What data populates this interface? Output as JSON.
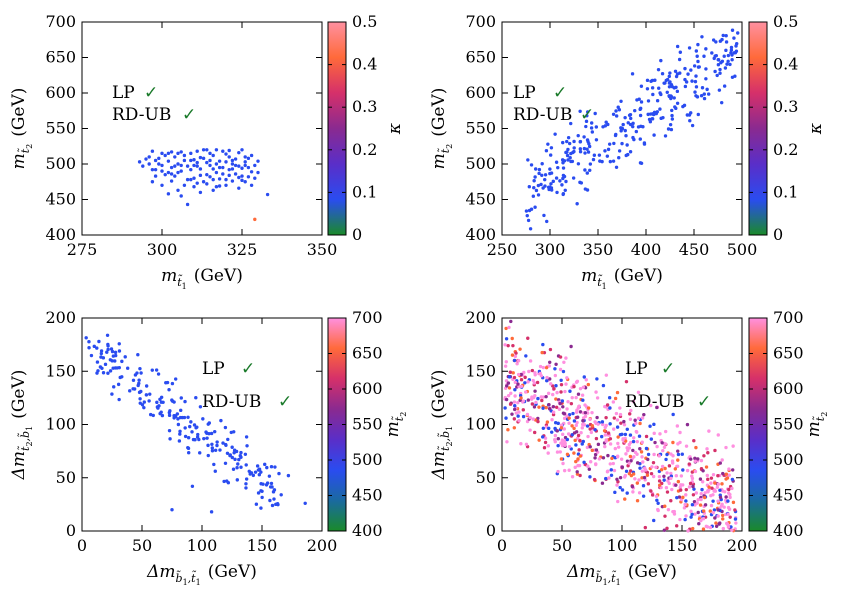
{
  "figure": {
    "panels": [
      {
        "id": "top-left",
        "annotations": {
          "lp": "LP",
          "rdub": "RD-UB",
          "check": "✓"
        },
        "xlabel": {
          "base": "m",
          "sub": "t̃",
          "subsub": "1",
          "unit": "(GeV)"
        },
        "ylabel": {
          "base": "m",
          "sub": "t̃",
          "subsub": "2",
          "unit": "(GeV)"
        },
        "colorbar_label": "κ"
      },
      {
        "id": "top-right",
        "annotations": {
          "lp": "LP",
          "rdub": "RD-UB",
          "check": "✓"
        },
        "xlabel": {
          "base": "m",
          "sub": "t̃",
          "subsub": "1",
          "unit": "(GeV)"
        },
        "ylabel": {
          "base": "m",
          "sub": "t̃",
          "subsub": "2",
          "unit": "(GeV)"
        },
        "colorbar_label": "κ"
      },
      {
        "id": "bottom-left",
        "annotations": {
          "lp": "LP",
          "rdub": "RD-UB",
          "check": "✓"
        },
        "xlabel": {
          "base": "Δm",
          "sub": "b̃",
          "subsub": "1",
          "sub2": ",t̃",
          "subsub2": "1",
          "unit": "(GeV)"
        },
        "ylabel": {
          "base": "Δm",
          "sub": "t̃",
          "subsub": "2",
          "sub2": ",b̃",
          "subsub2": "1",
          "unit": "(GeV)"
        },
        "colorbar_label": {
          "base": "m",
          "sub": "t̃",
          "subsub": "2"
        }
      },
      {
        "id": "bottom-right",
        "annotations": {
          "lp": "LP",
          "rdub": "RD-UB",
          "check": "✓"
        },
        "xlabel": {
          "base": "Δm",
          "sub": "b̃",
          "subsub": "1",
          "sub2": ",t̃",
          "subsub2": "1",
          "unit": "(GeV)"
        },
        "ylabel": {
          "base": "Δm",
          "sub": "t̃",
          "subsub": "2",
          "sub2": ",b̃",
          "subsub2": "1",
          "unit": "(GeV)"
        },
        "colorbar_label": {
          "base": "m",
          "sub": "t̃",
          "subsub": "2"
        }
      }
    ]
  },
  "chart_data": [
    {
      "type": "scatter",
      "panel": "top-left",
      "xlabel": "m_t̃1 (GeV)",
      "ylabel": "m_t̃2 (GeV)",
      "xlim": [
        275,
        350
      ],
      "ylim": [
        400,
        700
      ],
      "xticks": [
        275,
        300,
        325,
        350
      ],
      "yticks": [
        400,
        450,
        500,
        550,
        600,
        650,
        700
      ],
      "colorbar": {
        "label": "κ",
        "range": [
          0,
          0.5
        ],
        "ticks": [
          0,
          0.1,
          0.2,
          0.3,
          0.4,
          0.5
        ],
        "colors": [
          "#1a8a2a",
          "#2a4cf0",
          "#5a2ec8",
          "#8a2a90",
          "#d5306a",
          "#ff6a3a",
          "#ff90a0"
        ]
      },
      "point_color": "#2a4cf0",
      "points": [
        [
          293,
          503
        ],
        [
          296,
          500
        ],
        [
          298,
          492
        ],
        [
          300,
          498
        ],
        [
          302,
          504
        ],
        [
          303,
          495
        ],
        [
          304,
          510
        ],
        [
          305,
          500
        ],
        [
          306,
          490
        ],
        [
          307,
          505
        ],
        [
          308,
          497
        ],
        [
          309,
          515
        ],
        [
          310,
          480
        ],
        [
          311,
          502
        ],
        [
          312,
          493
        ],
        [
          313,
          508
        ],
        [
          314,
          485
        ],
        [
          315,
          498
        ],
        [
          316,
          512
        ],
        [
          317,
          488
        ],
        [
          318,
          504
        ],
        [
          319,
          495
        ],
        [
          320,
          478
        ],
        [
          321,
          510
        ],
        [
          322,
          500
        ],
        [
          323,
          486
        ],
        [
          324,
          516
        ],
        [
          325,
          494
        ],
        [
          326,
          503
        ],
        [
          327,
          482
        ],
        [
          328,
          512
        ],
        [
          329,
          498
        ],
        [
          330,
          488
        ],
        [
          297,
          518
        ],
        [
          299,
          508
        ],
        [
          301,
          485
        ],
        [
          303,
          476
        ],
        [
          305,
          515
        ],
        [
          307,
          470
        ],
        [
          309,
          492
        ],
        [
          311,
          518
        ],
        [
          313,
          475
        ],
        [
          315,
          505
        ],
        [
          317,
          520
        ],
        [
          319,
          486
        ],
        [
          321,
          492
        ],
        [
          323,
          507
        ],
        [
          325,
          520
        ],
        [
          327,
          495
        ],
        [
          300,
          515
        ],
        [
          302,
          488
        ],
        [
          304,
          497
        ],
        [
          306,
          517
        ],
        [
          308,
          478
        ],
        [
          310,
          506
        ],
        [
          312,
          484
        ],
        [
          314,
          520
        ],
        [
          316,
          493
        ],
        [
          318,
          479
        ],
        [
          320,
          514
        ],
        [
          322,
          493
        ],
        [
          324,
          481
        ],
        [
          326,
          510
        ],
        [
          328,
          489
        ],
        [
          298,
          483
        ],
        [
          296,
          510
        ],
        [
          294,
          497
        ],
        [
          300,
          470
        ],
        [
          302,
          458
        ],
        [
          306,
          455
        ],
        [
          308,
          443
        ],
        [
          312,
          460
        ],
        [
          316,
          463
        ],
        [
          320,
          470
        ],
        [
          324,
          466
        ],
        [
          328,
          470
        ],
        [
          333,
          457
        ],
        [
          297,
          492
        ],
        [
          299,
          500
        ],
        [
          301,
          512
        ],
        [
          303,
          517
        ],
        [
          305,
          488
        ],
        [
          307,
          512
        ],
        [
          309,
          505
        ],
        [
          311,
          497
        ],
        [
          313,
          520
        ],
        [
          315,
          482
        ],
        [
          317,
          500
        ],
        [
          319,
          518
        ],
        [
          321,
          484
        ],
        [
          323,
          498
        ],
        [
          325,
          483
        ],
        [
          327,
          508
        ],
        [
          329,
          480
        ],
        [
          310,
          498
        ],
        [
          314,
          502
        ],
        [
          318,
          495
        ],
        [
          322,
          505
        ],
        [
          326,
          498
        ],
        [
          304,
          483
        ],
        [
          306,
          498
        ],
        [
          312,
          509
        ],
        [
          316,
          478
        ],
        [
          320,
          503
        ],
        [
          324,
          497
        ],
        [
          298,
          505
        ],
        [
          300,
          490
        ],
        [
          302,
          515
        ],
        [
          310,
          468
        ],
        [
          314,
          472
        ],
        [
          318,
          469
        ],
        [
          322,
          476
        ],
        [
          326,
          475
        ],
        [
          330,
          504
        ],
        [
          295,
          507
        ],
        [
          297,
          475
        ],
        [
          303,
          486
        ],
        [
          309,
          478
        ],
        [
          315,
          515
        ],
        [
          321,
          519
        ],
        [
          325,
          477
        ],
        [
          305,
          463
        ],
        [
          311,
          473
        ],
        [
          317,
          468
        ]
      ],
      "highlighted": [
        {
          "x": 329,
          "y": 422,
          "color": "#ff6a3a"
        }
      ],
      "legend_text": [
        "LP ✓",
        "RD-UB ✓"
      ]
    },
    {
      "type": "scatter",
      "panel": "top-right",
      "xlabel": "m_t̃1 (GeV)",
      "ylabel": "m_t̃2 (GeV)",
      "xlim": [
        250,
        500
      ],
      "ylim": [
        400,
        700
      ],
      "xticks": [
        250,
        300,
        350,
        400,
        450,
        500
      ],
      "yticks": [
        400,
        450,
        500,
        550,
        600,
        650,
        700
      ],
      "colorbar": {
        "label": "κ",
        "range": [
          0,
          0.5
        ],
        "ticks": [
          0,
          0.1,
          0.2,
          0.3,
          0.4,
          0.5
        ],
        "colors": [
          "#1a8a2a",
          "#2a4cf0",
          "#5a2ec8",
          "#8a2a90",
          "#d5306a",
          "#ff6a3a",
          "#ff90a0"
        ]
      },
      "point_color": "#2a4cf0",
      "trend": {
        "x_start": 275,
        "x_end": 498,
        "y_start": 460,
        "y_end": 665,
        "spread": 60,
        "count": 340
      },
      "legend_text": [
        "LP ✓",
        "RD-UB ✓"
      ]
    },
    {
      "type": "scatter",
      "panel": "bottom-left",
      "xlabel": "Δm_b̃1,t̃1 (GeV)",
      "ylabel": "Δm_t̃2,b̃1 (GeV)",
      "xlim": [
        0,
        200
      ],
      "ylim": [
        0,
        200
      ],
      "xticks": [
        0,
        50,
        100,
        150,
        200
      ],
      "yticks": [
        0,
        50,
        100,
        150,
        200
      ],
      "colorbar": {
        "label": "m_t̃2",
        "range": [
          400,
          700
        ],
        "ticks": [
          400,
          450,
          500,
          550,
          600,
          650,
          700
        ],
        "colors": [
          "#1a8a2a",
          "#1a6aa0",
          "#2a4cf0",
          "#5a2ec8",
          "#8a2a90",
          "#d5306a",
          "#ff6a3a",
          "#ff90e0"
        ]
      },
      "point_color": "#2a4cf0",
      "trend": {
        "x_start": 3,
        "x_end": 165,
        "y_start": 175,
        "y_end": 35,
        "spread": 28,
        "count": 230
      },
      "points": [
        [
          186,
          26
        ],
        [
          160,
          30
        ],
        [
          166,
          34
        ],
        [
          172,
          52
        ],
        [
          148,
          58
        ],
        [
          108,
          18
        ],
        [
          75,
          20
        ],
        [
          92,
          42
        ]
      ],
      "legend_text": [
        "LP ✓",
        "RD-UB ✓"
      ]
    },
    {
      "type": "scatter",
      "panel": "bottom-right",
      "xlabel": "Δm_b̃1,t̃1 (GeV)",
      "ylabel": "Δm_t̃2,b̃1 (GeV)",
      "xlim": [
        0,
        200
      ],
      "ylim": [
        0,
        200
      ],
      "xticks": [
        0,
        50,
        100,
        150,
        200
      ],
      "yticks": [
        0,
        50,
        100,
        150,
        200
      ],
      "colorbar": {
        "label": "m_t̃2",
        "range": [
          400,
          700
        ],
        "ticks": [
          400,
          450,
          500,
          550,
          600,
          650,
          700
        ],
        "colors": [
          "#1a8a2a",
          "#1a6aa0",
          "#2a4cf0",
          "#5a2ec8",
          "#8a2a90",
          "#d5306a",
          "#ff6a3a",
          "#ff90e0"
        ]
      },
      "point_colors": [
        "#ff90e0",
        "#ff90e0",
        "#ff90e0",
        "#ff6a3a",
        "#d5306a",
        "#8a2a90",
        "#2a4cf0"
      ],
      "trend": {
        "x_start": 2,
        "x_end": 195,
        "y_start": 140,
        "y_end": 18,
        "spread": 55,
        "count": 900
      },
      "legend_text": [
        "LP ✓",
        "RD-UB ✓"
      ]
    }
  ]
}
